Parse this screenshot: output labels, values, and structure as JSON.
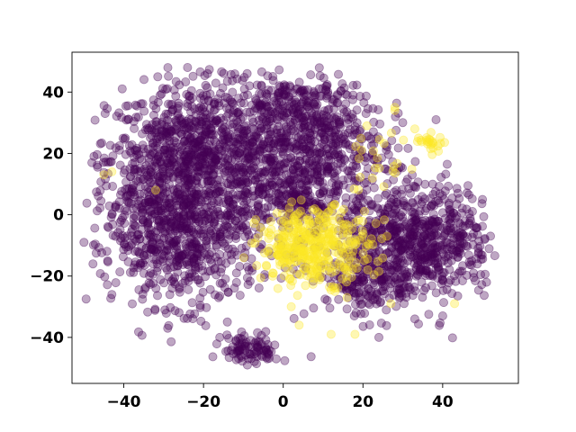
{
  "chart_data": {
    "type": "scatter",
    "title": "",
    "xlabel": "",
    "ylabel": "",
    "xlim": [
      -53,
      59
    ],
    "ylim": [
      -55,
      53
    ],
    "grid": false,
    "legend": "none",
    "x_ticks": [
      -40,
      -20,
      0,
      20,
      40
    ],
    "y_ticks": [
      -40,
      -20,
      0,
      20,
      40
    ],
    "x_tick_labels": [
      "−40",
      "−20",
      "0",
      "20",
      "40"
    ],
    "y_tick_labels": [
      "−40",
      "−20",
      "0",
      "20",
      "40"
    ],
    "marker_alpha": 0.35,
    "series": [
      {
        "color": "#440154",
        "clusters": [
          {
            "cx": -22,
            "cy": 18,
            "sx": 11,
            "sy": 12,
            "n": 900
          },
          {
            "cx": -24,
            "cy": -10,
            "sx": 9,
            "sy": 10,
            "n": 500
          },
          {
            "cx": -36,
            "cy": 2,
            "sx": 6,
            "sy": 12,
            "n": 160
          },
          {
            "cx": 5,
            "cy": 22,
            "sx": 10,
            "sy": 11,
            "n": 620
          },
          {
            "cx": 2,
            "cy": 36,
            "sx": 11,
            "sy": 5,
            "n": 160
          },
          {
            "cx": 33,
            "cy": -8,
            "sx": 10,
            "sy": 9,
            "n": 700
          },
          {
            "cx": 22,
            "cy": -22,
            "sx": 8,
            "sy": 6,
            "n": 180
          },
          {
            "cx": -8,
            "cy": -44,
            "sx": 3.5,
            "sy": 2.5,
            "n": 90
          },
          {
            "cx": 2,
            "cy": 4,
            "sx": 6,
            "sy": 5,
            "n": 150
          }
        ],
        "sample_points": [
          {
            "x": -48,
            "y": 17
          },
          {
            "x": -50,
            "y": -9
          },
          {
            "x": -24,
            "y": 48
          },
          {
            "x": 52,
            "y": -7
          },
          {
            "x": 51,
            "y": -22
          },
          {
            "x": 24,
            "y": -40
          },
          {
            "x": 33,
            "y": -34
          },
          {
            "x": 40,
            "y": -33
          },
          {
            "x": -29,
            "y": -37
          },
          {
            "x": -9,
            "y": -49
          },
          {
            "x": -4,
            "y": -47
          },
          {
            "x": -43,
            "y": -26
          },
          {
            "x": 50,
            "y": 5
          },
          {
            "x": 47,
            "y": -2
          }
        ]
      },
      {
        "color": "#fde725",
        "clusters": [
          {
            "cx": 8,
            "cy": -10,
            "sx": 7,
            "sy": 6,
            "n": 380
          },
          {
            "cx": 37,
            "cy": 24,
            "sx": 1.8,
            "sy": 1.5,
            "n": 24
          },
          {
            "cx": 24,
            "cy": 15,
            "sx": 4,
            "sy": 6,
            "n": 22
          }
        ],
        "sample_points": [
          {
            "x": -43,
            "y": 14
          },
          {
            "x": -45,
            "y": 13
          },
          {
            "x": -32,
            "y": 8
          },
          {
            "x": 28,
            "y": 34
          },
          {
            "x": 28,
            "y": 35
          },
          {
            "x": 18,
            "y": -39
          },
          {
            "x": 12,
            "y": -39
          },
          {
            "x": 43,
            "y": -29
          },
          {
            "x": 27,
            "y": -29
          },
          {
            "x": 2,
            "y": -30
          },
          {
            "x": 4,
            "y": -36
          },
          {
            "x": 33,
            "y": 28
          },
          {
            "x": 21,
            "y": 29
          },
          {
            "x": 16,
            "y": -27
          }
        ]
      }
    ]
  }
}
